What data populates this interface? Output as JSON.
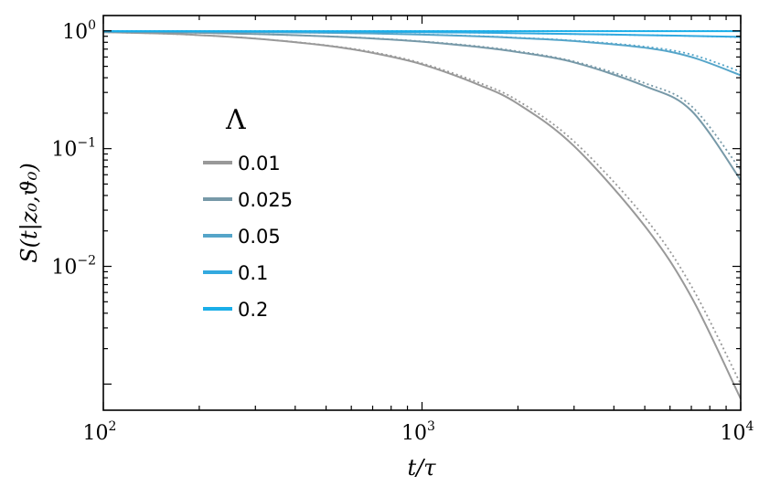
{
  "chart_data": {
    "type": "line",
    "xlabel": "t/τ",
    "ylabel": "S(t|z₀,ϑ₀)",
    "xscale": "log",
    "yscale": "log",
    "xlim": [
      100,
      10000
    ],
    "ylim": [
      0.0006,
      1.35
    ],
    "x_ticks": [
      {
        "value": 100,
        "base": "10",
        "exp": "2"
      },
      {
        "value": 1000,
        "base": "10",
        "exp": "3"
      },
      {
        "value": 10000,
        "base": "10",
        "exp": "4"
      }
    ],
    "y_ticks": [
      {
        "value": 1,
        "base": "10",
        "exp": "0"
      },
      {
        "value": 0.1,
        "base": "10",
        "exp": "−1"
      },
      {
        "value": 0.01,
        "base": "10",
        "exp": "−2"
      }
    ],
    "grid": false,
    "legend": {
      "title": "Λ",
      "placement": "center-left"
    },
    "x": [
      100,
      150,
      200,
      300,
      500,
      700,
      1000,
      1500,
      2000,
      3000,
      5000,
      7000,
      10000
    ],
    "series": [
      {
        "name": "0.01",
        "color": "#999999",
        "values": [
          0.975,
          0.95,
          0.92,
          0.86,
          0.75,
          0.65,
          0.52,
          0.35,
          0.24,
          0.105,
          0.022,
          0.0055,
          0.00075
        ],
        "dotted": [
          0.975,
          0.95,
          0.92,
          0.862,
          0.755,
          0.66,
          0.53,
          0.365,
          0.255,
          0.115,
          0.026,
          0.0068,
          0.001
        ]
      },
      {
        "name": "0.025",
        "color": "#7799a8",
        "values": [
          0.985,
          0.975,
          0.963,
          0.94,
          0.9,
          0.862,
          0.81,
          0.73,
          0.66,
          0.54,
          0.34,
          0.21,
          0.054
        ],
        "dotted": [
          0.985,
          0.975,
          0.963,
          0.94,
          0.9,
          0.865,
          0.815,
          0.74,
          0.67,
          0.55,
          0.36,
          0.23,
          0.066
        ]
      },
      {
        "name": "0.05",
        "color": "#55a5c9",
        "values": [
          0.99,
          0.987,
          0.983,
          0.976,
          0.963,
          0.95,
          0.93,
          0.9,
          0.87,
          0.82,
          0.72,
          0.6,
          0.42
        ],
        "dotted": [
          0.99,
          0.987,
          0.983,
          0.976,
          0.963,
          0.951,
          0.932,
          0.903,
          0.875,
          0.827,
          0.735,
          0.63,
          0.45
        ]
      },
      {
        "name": "0.1",
        "color": "#33a9df",
        "values": [
          0.993,
          0.992,
          0.991,
          0.988,
          0.984,
          0.98,
          0.975,
          0.965,
          0.955,
          0.94,
          0.92,
          0.905,
          0.89
        ],
        "dotted": [
          0.993,
          0.992,
          0.991,
          0.988,
          0.984,
          0.98,
          0.975,
          0.965,
          0.955,
          0.94,
          0.92,
          0.905,
          0.885
        ]
      },
      {
        "name": "0.2",
        "color": "#1aaee8",
        "values": [
          0.995,
          0.995,
          0.995,
          0.995,
          0.995,
          0.995,
          0.995,
          0.995,
          0.995,
          0.995,
          0.995,
          0.995,
          0.995
        ],
        "dotted": [
          0.995,
          0.995,
          0.995,
          0.995,
          0.995,
          0.995,
          0.995,
          0.995,
          0.995,
          0.995,
          0.995,
          0.995,
          0.995
        ]
      }
    ]
  }
}
